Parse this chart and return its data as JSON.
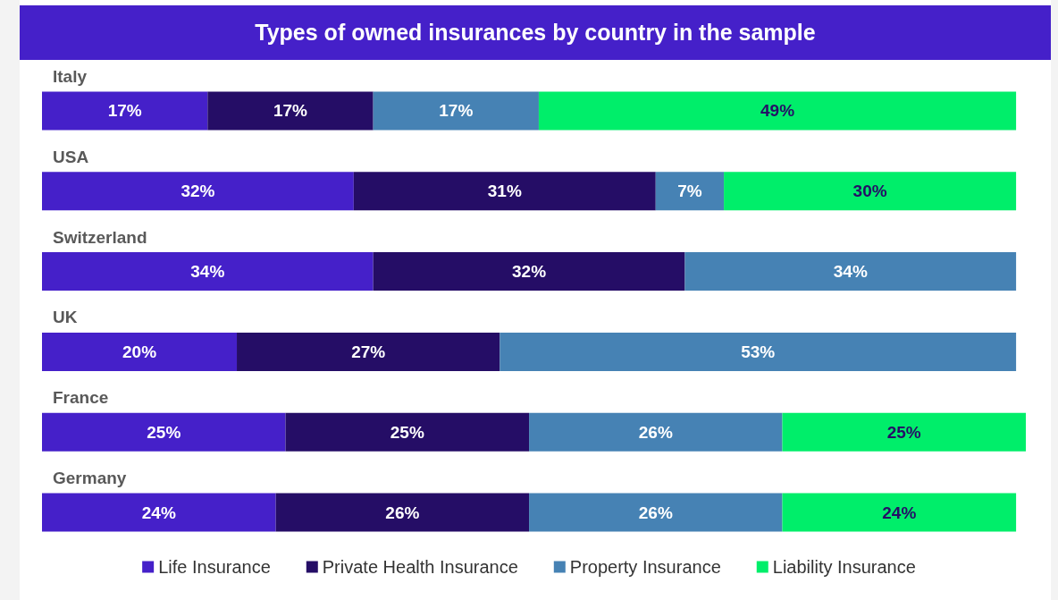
{
  "chart_data": {
    "type": "bar",
    "orientation": "horizontal",
    "stacked": true,
    "title": "Types of owned insurances by country in the sample",
    "categories": [
      "Italy",
      "USA",
      "Switzerland",
      "UK",
      "France",
      "Germany"
    ],
    "series": [
      {
        "name": "Life Insurance",
        "color": "#4520c9",
        "values": [
          17,
          32,
          34,
          20,
          25,
          24
        ],
        "value_labels": [
          "17%",
          "32%",
          "34%",
          "20%",
          "25%",
          "24%"
        ]
      },
      {
        "name": "Private Health Insurance",
        "color": "#250d66",
        "values": [
          17,
          31,
          32,
          27,
          25,
          26
        ],
        "value_labels": [
          "17%",
          "31%",
          "32%",
          "27%",
          "25%",
          "26%"
        ]
      },
      {
        "name": "Property Insurance",
        "color": "#4682b4",
        "values": [
          17,
          7,
          34,
          53,
          26,
          26
        ],
        "value_labels": [
          "17%",
          "7%",
          "34%",
          "53%",
          "26%",
          "26%"
        ]
      },
      {
        "name": "Liability Insurance",
        "color": "#00ee6a",
        "values": [
          49,
          30,
          null,
          null,
          25,
          24
        ],
        "value_labels": [
          "49%",
          "30%",
          null,
          null,
          "25%",
          "24%"
        ]
      }
    ],
    "legend": "bottom",
    "grid": false,
    "tick_labels": "y"
  }
}
